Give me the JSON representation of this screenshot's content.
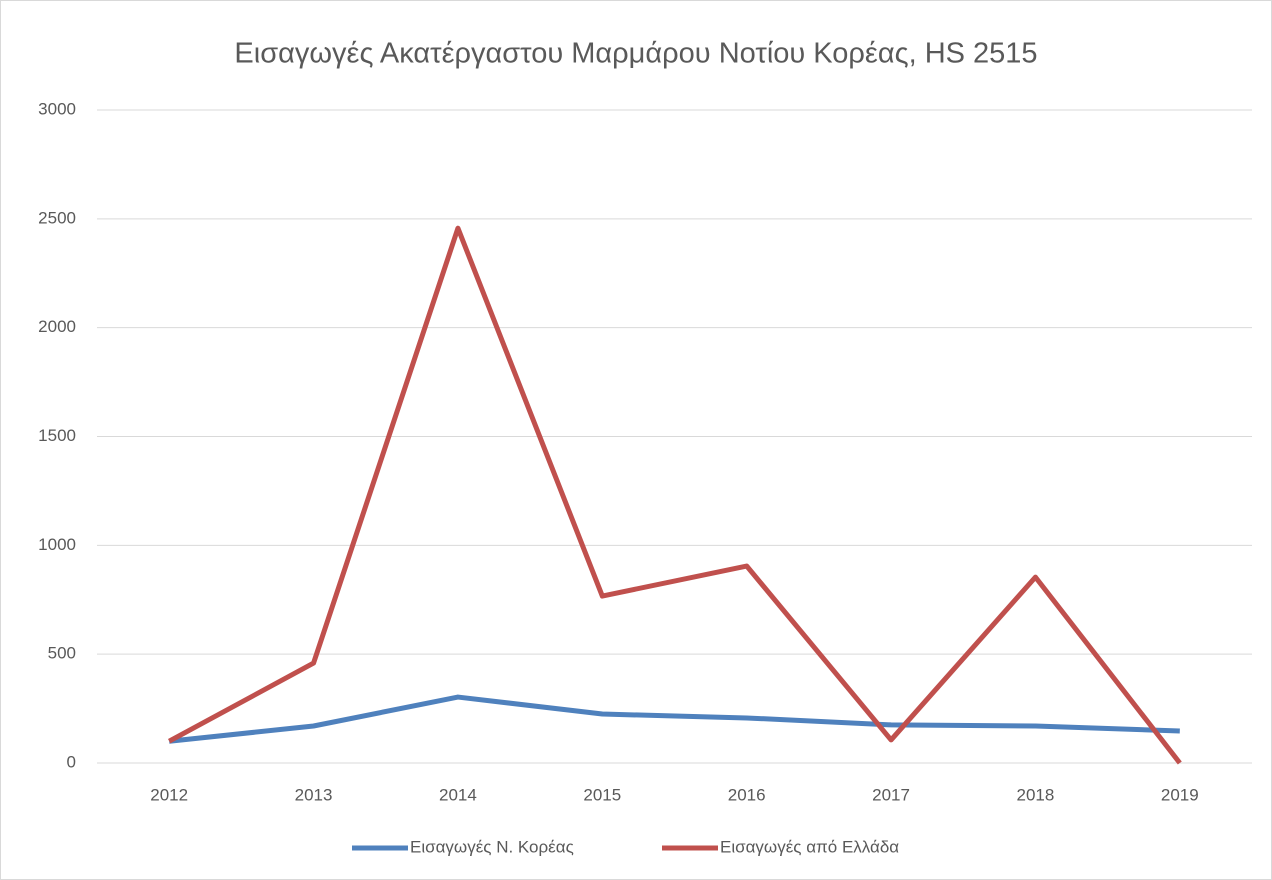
{
  "chart_data": {
    "type": "line",
    "title": "Εισαγωγές Ακατέργαστου Μαρμάρου Νοτίου Κορέας, HS 2515",
    "categories": [
      "2012",
      "2013",
      "2014",
      "2015",
      "2016",
      "2017",
      "2018",
      "2019"
    ],
    "series": [
      {
        "name": "Εισαγωγές Ν. Κορέας",
        "color": "#4f81bd",
        "values": [
          100,
          170,
          303,
          225,
          207,
          175,
          170,
          147
        ]
      },
      {
        "name": "Εισαγωγές από Ελλάδα",
        "color": "#c0504d",
        "values": [
          100,
          459,
          2457,
          767,
          905,
          106,
          854,
          0
        ]
      }
    ],
    "ylim": [
      0,
      3000
    ],
    "yticks": [
      0,
      500,
      1000,
      1500,
      2000,
      2500,
      3000
    ],
    "grid": true,
    "legend": "bottom"
  }
}
